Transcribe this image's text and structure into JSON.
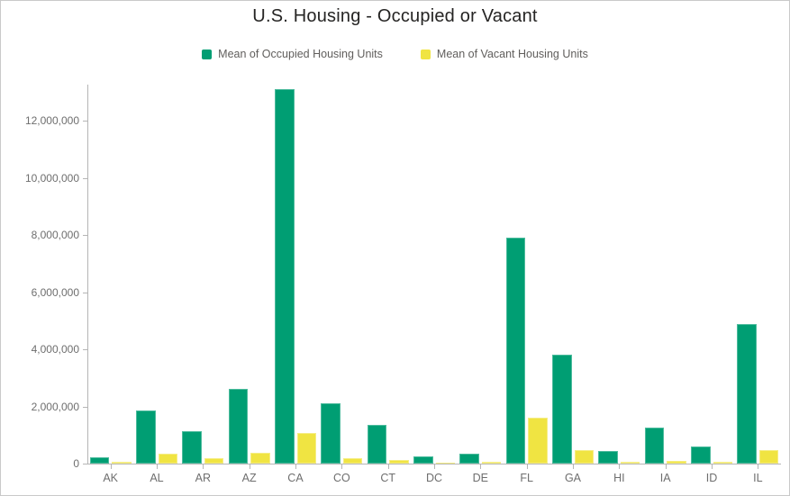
{
  "title": "U.S. Housing - Occupied or Vacant",
  "legend": {
    "items": [
      {
        "label": "Mean of Occupied Housing Units",
        "color": "#009E73"
      },
      {
        "label": "Mean of Vacant Housing Units",
        "color": "#F0E442"
      }
    ]
  },
  "colors": {
    "occupied": "#009E73",
    "vacant": "#F0E442",
    "axis": "#B5B5B5",
    "axis_text": "#6E6E6E",
    "title_text": "#252423",
    "legend_text": "#605E5C",
    "card_border": "#C9C9C9"
  },
  "chart_data": {
    "type": "bar",
    "title": "U.S. Housing - Occupied or Vacant",
    "categories": [
      "AK",
      "AL",
      "AR",
      "AZ",
      "CA",
      "CO",
      "CT",
      "DC",
      "DE",
      "FL",
      "GA",
      "HI",
      "IA",
      "ID",
      "IL"
    ],
    "series": [
      {
        "name": "Mean of Occupied Housing Units",
        "color": "#009E73",
        "values": [
          220000,
          1850000,
          1130000,
          2600000,
          13100000,
          2100000,
          1340000,
          240000,
          340000,
          7900000,
          3800000,
          430000,
          1250000,
          600000,
          4870000
        ]
      },
      {
        "name": "Mean of Vacant Housing Units",
        "color": "#F0E442",
        "values": [
          60000,
          350000,
          180000,
          380000,
          1080000,
          190000,
          120000,
          30000,
          60000,
          1600000,
          460000,
          60000,
          110000,
          70000,
          470000
        ]
      }
    ],
    "xlabel": "",
    "ylabel": "",
    "ylim": [
      0,
      13300000
    ],
    "yticks": [
      0,
      2000000,
      4000000,
      6000000,
      8000000,
      10000000,
      12000000
    ],
    "ytick_labels": [
      "0",
      "2,000,000",
      "4,000,000",
      "6,000,000",
      "8,000,000",
      "10,000,000",
      "12,000,000"
    ],
    "grid": false,
    "legend_position": "top"
  }
}
